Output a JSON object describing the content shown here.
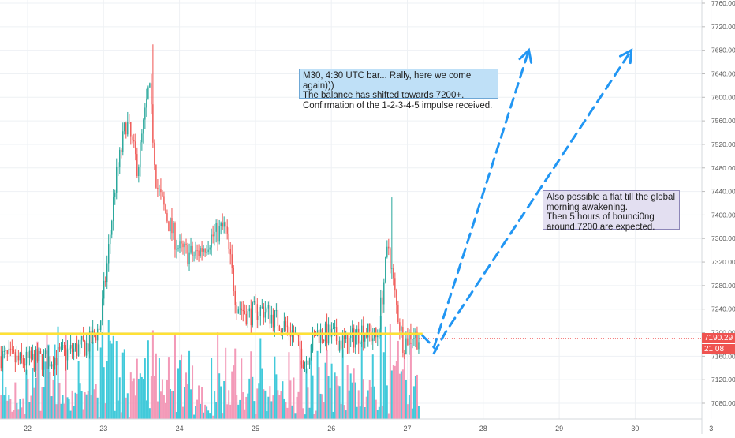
{
  "chart_data": {
    "type": "candlestick",
    "x_ticks": [
      "22",
      "23",
      "24",
      "25",
      "26",
      "27",
      "28",
      "29",
      "30",
      "3"
    ],
    "y_ticks": [
      7080,
      7120,
      7160,
      7200,
      7240,
      7280,
      7320,
      7360,
      7400,
      7440,
      7480,
      7520,
      7560,
      7600,
      7640,
      7680,
      7720,
      7760
    ],
    "y_tick_labels": [
      "7080.00",
      "7120.00",
      "7160.00",
      "7200.00",
      "7240.00",
      "7280.00",
      "7320.00",
      "7360.00",
      "7400.00",
      "7440.00",
      "7480.00",
      "7520.00",
      "7560.00",
      "7600.00",
      "7640.00",
      "7680.00",
      "7720.00",
      "7760.00"
    ],
    "ylim": [
      7050,
      7770
    ],
    "xlim": [
      21.65,
      30.95
    ],
    "support_level": 7198,
    "last_price": 7190.29,
    "last_price_label": "7190.29",
    "countdown_label": "21:08",
    "key_points": [
      [
        21.65,
        7160
      ],
      [
        21.9,
        7150
      ],
      [
        22.3,
        7155
      ],
      [
        22.6,
        7170
      ],
      [
        22.8,
        7180
      ],
      [
        22.95,
        7210
      ],
      [
        23.05,
        7320
      ],
      [
        23.15,
        7450
      ],
      [
        23.3,
        7560
      ],
      [
        23.45,
        7480
      ],
      [
        23.6,
        7620
      ],
      [
        23.7,
        7450
      ],
      [
        23.85,
        7390
      ],
      [
        24.0,
        7340
      ],
      [
        24.2,
        7330
      ],
      [
        24.4,
        7360
      ],
      [
        24.6,
        7380
      ],
      [
        24.75,
        7250
      ],
      [
        24.9,
        7230
      ],
      [
        25.1,
        7240
      ],
      [
        25.3,
        7220
      ],
      [
        25.5,
        7200
      ],
      [
        25.65,
        7150
      ],
      [
        25.8,
        7200
      ],
      [
        26.0,
        7195
      ],
      [
        26.2,
        7180
      ],
      [
        26.4,
        7205
      ],
      [
        26.6,
        7190
      ],
      [
        26.75,
        7350
      ],
      [
        26.85,
        7250
      ],
      [
        26.95,
        7180
      ],
      [
        27.05,
        7200
      ],
      [
        27.15,
        7190
      ]
    ],
    "arrow_paths": [
      [
        [
          27.2,
          7195
        ],
        [
          27.35,
          7175
        ],
        [
          28.6,
          7680
        ]
      ],
      [
        [
          27.35,
          7165
        ],
        [
          27.5,
          7200
        ],
        [
          29.95,
          7680
        ]
      ]
    ]
  },
  "annotations": {
    "note1": "M30, 4:30 UTC bar... Rally, here we come again)))\nThe balance has shifted towards 7200+.\nConfirmation of the 1-2-3-4-5 impulse received.",
    "note2": "Also possible a flat till the global morning awakening.\nThen 5 hours of bounci0ng around 7200 are expected."
  },
  "colors": {
    "up": "#26a69a",
    "down": "#ef5350",
    "vol_up": "#2ec4d6",
    "vol_down": "#f28fb0",
    "support": "#ffe135",
    "arrow": "#2196f3",
    "grid": "#eef1f4",
    "axis_text": "#555555"
  }
}
